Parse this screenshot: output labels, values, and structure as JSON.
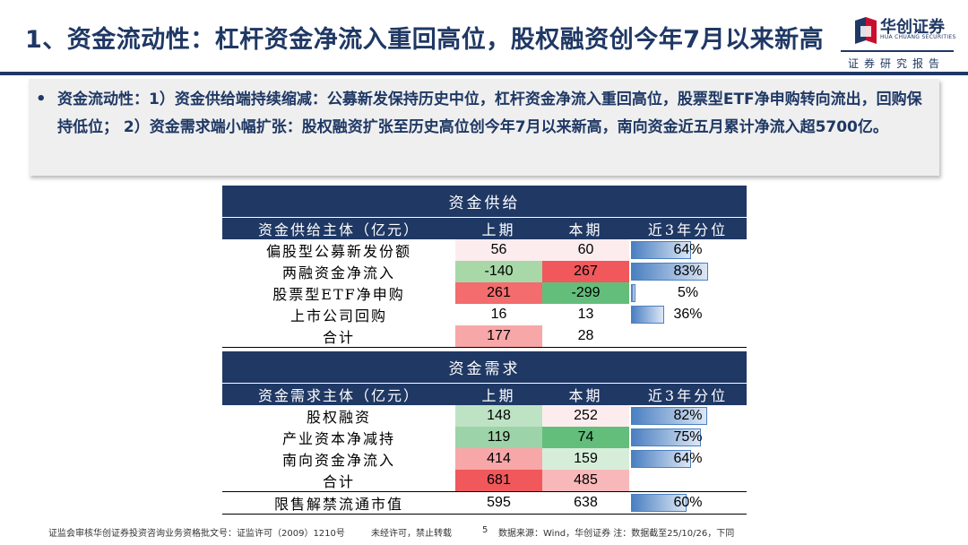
{
  "header": {
    "title": "1、资金流动性：杠杆资金净流入重回高位，股权融资创今年7月以来新高",
    "logo_name": "华创证券",
    "logo_en": "HUA CHUANG SECURITIES",
    "report_tag": "证券研究报告"
  },
  "summary": {
    "bullet": "•",
    "text": "资金流动性：1）资金供给端持续缩减：公募新发保持历史中位，杠杆资金净流入重回高位，股票型ETF净申购转向流出，回购保持低位； 2）资金需求端小幅扩张：股权融资扩张至历史高位创今年7月以来新高，南向资金近五月累计净流入超5700亿。"
  },
  "supply": {
    "band": "资金供给",
    "headers": [
      "资金供给主体（亿元）",
      "上期",
      "本期",
      "近3年分位"
    ],
    "rows": [
      {
        "name": "偏股型公募新发份额",
        "prev": "56",
        "curr": "60",
        "pct": "64%",
        "pct_value": 0.64,
        "prev_bg": "#FDECEE",
        "curr_bg": "#FDECEE"
      },
      {
        "name": "两融资金净流入",
        "prev": "-140",
        "curr": "267",
        "pct": "83%",
        "pct_value": 0.83,
        "prev_bg": "#A8D8A8",
        "curr_bg": "#F0585C"
      },
      {
        "name": "股票型ETF净申购",
        "prev": "261",
        "curr": "-299",
        "pct": "5%",
        "pct_value": 0.05,
        "prev_bg": "#F36C6E",
        "curr_bg": "#63BE7B"
      },
      {
        "name": "上市公司回购",
        "prev": "16",
        "curr": "13",
        "pct": "36%",
        "pct_value": 0.36,
        "prev_bg": "#FFFFFF",
        "curr_bg": "#FFFFFF"
      },
      {
        "name": "合计",
        "prev": "177",
        "curr": "28",
        "pct": "",
        "pct_value": null,
        "prev_bg": "#F8A7A8",
        "curr_bg": "#FFFFFF"
      }
    ]
  },
  "demand": {
    "band": "资金需求",
    "headers": [
      "资金需求主体（亿元）",
      "上期",
      "本期",
      "近3年分位"
    ],
    "rows": [
      {
        "name": "股权融资",
        "prev": "148",
        "curr": "252",
        "pct": "82%",
        "pct_value": 0.82,
        "prev_bg": "#BEE3C4",
        "curr_bg": "#FDECEE"
      },
      {
        "name": "产业资本净减持",
        "prev": "119",
        "curr": "74",
        "pct": "75%",
        "pct_value": 0.75,
        "prev_bg": "#9DD3A8",
        "curr_bg": "#63BE7B"
      },
      {
        "name": "南向资金净流入",
        "prev": "414",
        "curr": "159",
        "pct": "64%",
        "pct_value": 0.64,
        "prev_bg": "#F8A7A8",
        "curr_bg": "#D6EED9"
      },
      {
        "name": "合计",
        "prev": "681",
        "curr": "485",
        "pct": "",
        "pct_value": null,
        "prev_bg": "#F0585C",
        "curr_bg": "#F8B8BA"
      }
    ],
    "extra": {
      "name": "限售解禁流通市值",
      "prev": "595",
      "curr": "638",
      "pct": "60%",
      "pct_value": 0.6,
      "prev_bg": "#FFFFFF",
      "curr_bg": "#FFFFFF"
    }
  },
  "footer": {
    "license": "证监会审核华创证券投资咨询业务资格批文号：证监许可（2009）1210号",
    "notice": "未经许可，禁止转载",
    "page": "5",
    "source": "数据来源：Wind，华创证券 注：数据截至25/10/26，下同"
  }
}
